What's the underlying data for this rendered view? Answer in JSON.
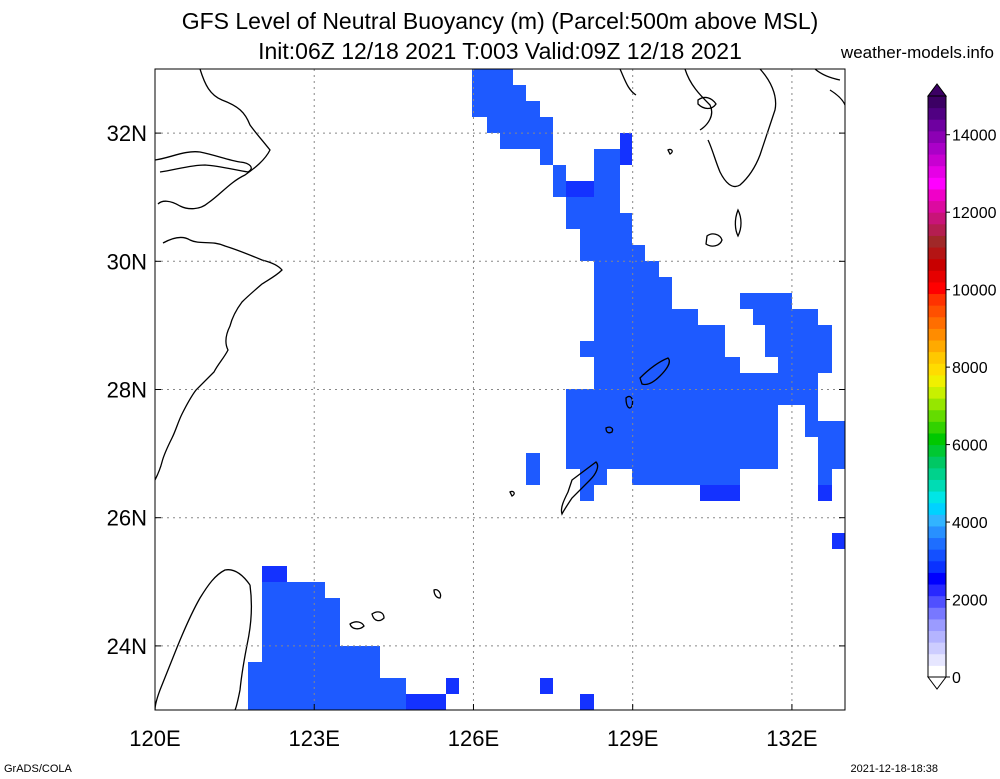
{
  "title": {
    "line1": "GFS Level of Neutral Buoyancy (m) (Parcel:500m above MSL)",
    "line2": "Init:06Z 12/18 2021 T:003 Valid:09Z 12/18 2021"
  },
  "brand": "weather-models.info",
  "footer": {
    "left": "GrADS/COLA",
    "right": "2021-12-18-18:38"
  },
  "map": {
    "lon_range": [
      120,
      133
    ],
    "lat_range": [
      23,
      33
    ],
    "x_ticks": [
      {
        "value": 120,
        "label": "120E"
      },
      {
        "value": 123,
        "label": "123E"
      },
      {
        "value": 126,
        "label": "126E"
      },
      {
        "value": 129,
        "label": "129E"
      },
      {
        "value": 132,
        "label": "132E"
      }
    ],
    "y_ticks": [
      {
        "value": 24,
        "label": "24N"
      },
      {
        "value": 26,
        "label": "26N"
      },
      {
        "value": 28,
        "label": "28N"
      },
      {
        "value": 30,
        "label": "30N"
      },
      {
        "value": 32,
        "label": "32N"
      }
    ],
    "grid": true,
    "fill_color": "#1e5aff",
    "fill_color_dark": "#1432ff",
    "coast_color": "#000000"
  },
  "colorbar": {
    "range": [
      0,
      15000
    ],
    "labels": [
      {
        "value": 0,
        "label": "0"
      },
      {
        "value": 2000,
        "label": "2000"
      },
      {
        "value": 4000,
        "label": "4000"
      },
      {
        "value": 6000,
        "label": "6000"
      },
      {
        "value": 8000,
        "label": "8000"
      },
      {
        "value": 10000,
        "label": "10000"
      },
      {
        "value": 12000,
        "label": "12000"
      },
      {
        "value": 14000,
        "label": "14000"
      }
    ],
    "colors": [
      "#ffffff",
      "#e6e6ff",
      "#cdcdff",
      "#b4b4ff",
      "#9b9bff",
      "#7878ff",
      "#5050ff",
      "#2828ff",
      "#0000ff",
      "#0a32ff",
      "#1450ff",
      "#1e6eff",
      "#2890ff",
      "#32b4ff",
      "#00d2ff",
      "#00e6e6",
      "#00dcb4",
      "#00d28c",
      "#00c864",
      "#00c832",
      "#00c800",
      "#32d200",
      "#64dc00",
      "#96e600",
      "#c8f000",
      "#f0f000",
      "#ffdc00",
      "#ffc800",
      "#ffaa00",
      "#ff8c00",
      "#ff6e00",
      "#ff5000",
      "#ff3200",
      "#ff0000",
      "#e60000",
      "#c80000",
      "#b41414",
      "#a02828",
      "#b41e50",
      "#c81478",
      "#dc0aa0",
      "#f000c8",
      "#ff00ff",
      "#e600e6",
      "#c800d2",
      "#aa00c8",
      "#8c00b4",
      "#6e00a0",
      "#500082",
      "#3c0064"
    ]
  }
}
